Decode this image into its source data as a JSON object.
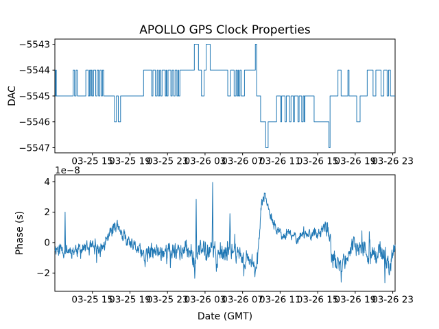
{
  "figure": {
    "title": "APOLLO GPS Clock Properties",
    "line_color": "#1f77b4",
    "background": "#ffffff"
  },
  "chart_data": [
    {
      "type": "line",
      "subplot": "top",
      "title": "APOLLO GPS Clock Properties",
      "ylabel": "DAC",
      "style": "step",
      "line_color": "#1f77b4",
      "xlim": [
        0,
        36.25
      ],
      "ylim": [
        -5547.2,
        -5542.8
      ],
      "grid": false,
      "legend": "none",
      "yticks": {
        "values": [
          -5543,
          -5544,
          -5545,
          -5546,
          -5547
        ],
        "labels": [
          "−5543",
          "−5544",
          "−5545",
          "−5546",
          "−5547"
        ]
      },
      "xticks": {
        "hours": [
          4,
          8,
          12,
          16,
          20,
          24,
          28,
          32,
          36
        ],
        "labels": [
          "03-25 15",
          "03-25 19",
          "03-25 23",
          "03-26 03",
          "03-26 07",
          "03-26 11",
          "03-26 15",
          "03-26 19",
          "03-26 23"
        ]
      },
      "step_points": [
        [
          0,
          -5544
        ],
        [
          0.06,
          -5545
        ],
        [
          0.1,
          -5544
        ],
        [
          0.15,
          -5545
        ],
        [
          1.95,
          -5544
        ],
        [
          2.1,
          -5545
        ],
        [
          2.26,
          -5544
        ],
        [
          2.4,
          -5545
        ],
        [
          3.3,
          -5544
        ],
        [
          3.56,
          -5545
        ],
        [
          3.7,
          -5544
        ],
        [
          3.82,
          -5545
        ],
        [
          3.88,
          -5544
        ],
        [
          3.97,
          -5545
        ],
        [
          4.12,
          -5544
        ],
        [
          4.35,
          -5545
        ],
        [
          4.5,
          -5544
        ],
        [
          4.66,
          -5545
        ],
        [
          4.8,
          -5544
        ],
        [
          4.95,
          -5545
        ],
        [
          5.07,
          -5544
        ],
        [
          5.2,
          -5545
        ],
        [
          6.35,
          -5546
        ],
        [
          6.56,
          -5545
        ],
        [
          6.76,
          -5546
        ],
        [
          7.0,
          -5545
        ],
        [
          9.45,
          -5544
        ],
        [
          10.32,
          -5545
        ],
        [
          10.45,
          -5544
        ],
        [
          10.72,
          -5545
        ],
        [
          10.9,
          -5544
        ],
        [
          11.02,
          -5545
        ],
        [
          11.16,
          -5544
        ],
        [
          11.27,
          -5545
        ],
        [
          11.42,
          -5544
        ],
        [
          11.76,
          -5545
        ],
        [
          11.86,
          -5544
        ],
        [
          11.92,
          -5545
        ],
        [
          12.06,
          -5544
        ],
        [
          12.36,
          -5545
        ],
        [
          12.5,
          -5544
        ],
        [
          12.66,
          -5545
        ],
        [
          12.81,
          -5544
        ],
        [
          13.0,
          -5545
        ],
        [
          13.12,
          -5544
        ],
        [
          13.18,
          -5545
        ],
        [
          13.32,
          -5544
        ],
        [
          14.86,
          -5543
        ],
        [
          15.3,
          -5544
        ],
        [
          15.62,
          -5545
        ],
        [
          15.9,
          -5544
        ],
        [
          16.12,
          -5543
        ],
        [
          16.55,
          -5544
        ],
        [
          18.42,
          -5545
        ],
        [
          18.72,
          -5544
        ],
        [
          19.1,
          -5545
        ],
        [
          19.3,
          -5544
        ],
        [
          19.42,
          -5545
        ],
        [
          19.52,
          -5544
        ],
        [
          19.58,
          -5545
        ],
        [
          19.72,
          -5544
        ],
        [
          19.86,
          -5545
        ],
        [
          20.2,
          -5544
        ],
        [
          21.36,
          -5543
        ],
        [
          21.5,
          -5545
        ],
        [
          21.92,
          -5546
        ],
        [
          22.46,
          -5547
        ],
        [
          22.72,
          -5546
        ],
        [
          23.62,
          -5545
        ],
        [
          24.06,
          -5546
        ],
        [
          24.16,
          -5545
        ],
        [
          24.52,
          -5546
        ],
        [
          24.66,
          -5545
        ],
        [
          25.0,
          -5546
        ],
        [
          25.16,
          -5545
        ],
        [
          25.42,
          -5546
        ],
        [
          25.52,
          -5545
        ],
        [
          25.9,
          -5546
        ],
        [
          26.02,
          -5545
        ],
        [
          26.3,
          -5546
        ],
        [
          26.46,
          -5545
        ],
        [
          26.58,
          -5546
        ],
        [
          26.64,
          -5545
        ],
        [
          27.62,
          -5546
        ],
        [
          29.2,
          -5547
        ],
        [
          29.32,
          -5545
        ],
        [
          30.16,
          -5544
        ],
        [
          30.5,
          -5545
        ],
        [
          31.22,
          -5544
        ],
        [
          31.34,
          -5545
        ],
        [
          32.16,
          -5546
        ],
        [
          32.52,
          -5545
        ],
        [
          33.28,
          -5544
        ],
        [
          33.9,
          -5545
        ],
        [
          34.2,
          -5544
        ],
        [
          34.75,
          -5545
        ],
        [
          35.05,
          -5544
        ],
        [
          35.4,
          -5545
        ],
        [
          35.55,
          -5544
        ],
        [
          35.75,
          -5545
        ]
      ],
      "x_end": 36.25
    },
    {
      "type": "line",
      "subplot": "bottom",
      "ylabel": "Phase (s)",
      "xlabel": "Date (GMT)",
      "offset_text": "1e−8",
      "line_color": "#1f77b4",
      "xlim": [
        0,
        36.25
      ],
      "ylim": [
        -3.2,
        4.45
      ],
      "grid": false,
      "legend": "none",
      "yticks": {
        "values": [
          -2,
          0,
          2,
          4
        ],
        "labels": [
          "−2",
          "0",
          "2",
          "4"
        ]
      },
      "xticks": {
        "hours": [
          4,
          8,
          12,
          16,
          20,
          24,
          28,
          32,
          36
        ],
        "labels": [
          "03-25 15",
          "03-25 19",
          "03-25 23",
          "03-26 03",
          "03-26 07",
          "03-26 11",
          "03-26 15",
          "03-26 19",
          "03-26 23"
        ]
      },
      "trend": [
        [
          0,
          -0.3
        ],
        [
          0.5,
          -0.4
        ],
        [
          1.5,
          -0.5
        ],
        [
          2.5,
          -0.45
        ],
        [
          3.5,
          -0.4
        ],
        [
          4.5,
          -0.5
        ],
        [
          5.3,
          -0.2
        ],
        [
          5.8,
          0.5
        ],
        [
          6.35,
          1.3
        ],
        [
          6.8,
          0.8
        ],
        [
          7.3,
          0.4
        ],
        [
          8,
          -0.2
        ],
        [
          8.8,
          -0.4
        ],
        [
          9.4,
          -0.9
        ],
        [
          10,
          -0.75
        ],
        [
          11,
          -0.6
        ],
        [
          12,
          -0.55
        ],
        [
          13,
          -0.5
        ],
        [
          13.8,
          -0.6
        ],
        [
          14.5,
          -0.4
        ],
        [
          14.88,
          -1.1
        ],
        [
          15.3,
          -0.6
        ],
        [
          15.9,
          -0.5
        ],
        [
          16.4,
          -0.4
        ],
        [
          17.1,
          -0.5
        ],
        [
          17.5,
          -1.1
        ],
        [
          18,
          -0.8
        ],
        [
          18.7,
          -0.35
        ],
        [
          19.2,
          -0.7
        ],
        [
          19.8,
          -0.7
        ],
        [
          20.1,
          -1.2
        ],
        [
          20.6,
          -0.9
        ],
        [
          21,
          -1.1
        ],
        [
          21.5,
          -1.6
        ],
        [
          21.75,
          0
        ],
        [
          22,
          2.4
        ],
        [
          22.35,
          3.3
        ],
        [
          22.7,
          2.2
        ],
        [
          23.2,
          1.3
        ],
        [
          23.7,
          0.8
        ],
        [
          24.2,
          0.5
        ],
        [
          24.7,
          0.55
        ],
        [
          25.2,
          0.45
        ],
        [
          25.7,
          0.35
        ],
        [
          26.2,
          0.55
        ],
        [
          26.7,
          0.5
        ],
        [
          27.2,
          0.65
        ],
        [
          27.6,
          0.5
        ],
        [
          28,
          0.4
        ],
        [
          28.5,
          0.6
        ],
        [
          28.9,
          0.9
        ],
        [
          29.2,
          0.6
        ],
        [
          29.5,
          -0.8
        ],
        [
          29.9,
          -1.3
        ],
        [
          30.5,
          -1.6
        ],
        [
          31,
          -0.9
        ],
        [
          31.5,
          -0.4
        ],
        [
          31.9,
          -0.2
        ],
        [
          32.3,
          -0.7
        ],
        [
          32.7,
          -0.4
        ],
        [
          33,
          -0.5
        ],
        [
          33.4,
          -0.8
        ],
        [
          33.8,
          -0.5
        ],
        [
          34.2,
          -0.9
        ],
        [
          34.6,
          -0.5
        ],
        [
          35,
          -0.7
        ],
        [
          35.3,
          -1.1
        ],
        [
          35.6,
          -1.8
        ],
        [
          35.9,
          -0.8
        ],
        [
          36.25,
          -0.5
        ]
      ],
      "noise_amp": [
        [
          0,
          0.32
        ],
        [
          5,
          0.32
        ],
        [
          6.5,
          0.28
        ],
        [
          9,
          0.3
        ],
        [
          10,
          0.42
        ],
        [
          14,
          0.38
        ],
        [
          16,
          0.48
        ],
        [
          18,
          0.42
        ],
        [
          20,
          0.38
        ],
        [
          21.5,
          0.28
        ],
        [
          22.5,
          0.22
        ],
        [
          24,
          0.22
        ],
        [
          26,
          0.24
        ],
        [
          28,
          0.28
        ],
        [
          29.5,
          0.42
        ],
        [
          30.5,
          0.48
        ],
        [
          32,
          0.4
        ],
        [
          34,
          0.45
        ],
        [
          36.25,
          0.42
        ]
      ],
      "spikes": [
        [
          1.1,
          2.0
        ],
        [
          9.6,
          -1.6
        ],
        [
          12.3,
          -1.65
        ],
        [
          14.9,
          -2.35
        ],
        [
          15.05,
          2.85
        ],
        [
          16.8,
          3.95
        ],
        [
          17.2,
          -1.9
        ],
        [
          18.65,
          1.9
        ],
        [
          20.15,
          -2.2
        ],
        [
          21.3,
          -2.25
        ],
        [
          30.5,
          -2.6
        ],
        [
          35.15,
          -2.65
        ]
      ],
      "noise": {
        "seed": 11,
        "ar": 0.55,
        "samples": 1200,
        "burst_prob": 0.045,
        "burst_scale": 2.3
      },
      "clamp": [
        -2.85,
        4.15
      ]
    }
  ]
}
